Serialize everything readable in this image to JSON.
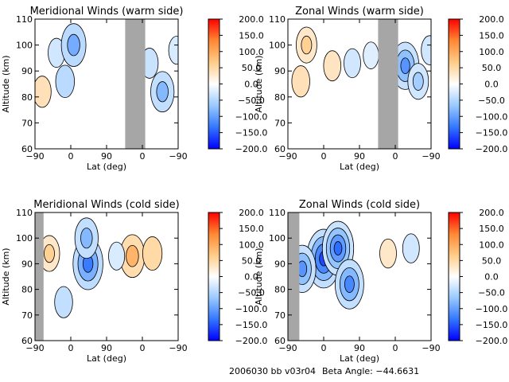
{
  "footer": {
    "run_label": "2006030 bb v03r04",
    "beta_label": "Beta Angle: −44.6631"
  },
  "colorbar": {
    "ticks": [
      "200.0",
      "150.0",
      "100.0",
      "50.0",
      "0.0",
      "−50.0",
      "−100.0",
      "−150.0",
      "−200.0"
    ],
    "range": [
      -200,
      200
    ],
    "colors": [
      "#0000ff",
      "#3377ff",
      "#99c9ff",
      "#ffffff",
      "#ffcc88",
      "#ff8833",
      "#ff0000"
    ]
  },
  "chart_data": [
    {
      "type": "heatmap",
      "title": "Meridional Winds (warm side)",
      "xlabel": "Lat (deg)",
      "ylabel": "Altitude (km)",
      "x_ticks": [
        "−90",
        "0",
        "90",
        "0",
        "−90"
      ],
      "y_ticks": [
        "60",
        "70",
        "80",
        "90",
        "100",
        "110"
      ],
      "ylim": [
        60,
        110
      ],
      "value_range": [
        -200,
        200
      ],
      "missing_band": {
        "x": [
          0.63,
          0.77
        ],
        "y": [
          60,
          110
        ]
      },
      "blobs": [
        {
          "x": 0.05,
          "y": 82,
          "value": 40
        },
        {
          "x": 0.15,
          "y": 97,
          "value": -30
        },
        {
          "x": 0.27,
          "y": 100,
          "value": -90
        },
        {
          "x": 0.21,
          "y": 86,
          "value": -45
        },
        {
          "x": 0.89,
          "y": 82,
          "value": -80
        },
        {
          "x": 0.8,
          "y": 93,
          "value": -35
        },
        {
          "x": 0.99,
          "y": 98,
          "value": -25
        }
      ]
    },
    {
      "type": "heatmap",
      "title": "Zonal Winds (warm side)",
      "xlabel": "Lat (deg)",
      "ylabel": "Altitude (km)",
      "x_ticks": [
        "−90",
        "0",
        "90",
        "0",
        "−90"
      ],
      "y_ticks": [
        "60",
        "70",
        "80",
        "90",
        "100",
        "110"
      ],
      "ylim": [
        60,
        110
      ],
      "value_range": [
        -200,
        200
      ],
      "missing_band": {
        "x": [
          0.63,
          0.77
        ],
        "y": [
          60,
          110
        ]
      },
      "blobs": [
        {
          "x": 0.13,
          "y": 100,
          "value": 60
        },
        {
          "x": 0.09,
          "y": 86,
          "value": 40
        },
        {
          "x": 0.31,
          "y": 92,
          "value": 35
        },
        {
          "x": 0.45,
          "y": 93,
          "value": -30
        },
        {
          "x": 0.58,
          "y": 96,
          "value": -20
        },
        {
          "x": 0.82,
          "y": 92,
          "value": -110
        },
        {
          "x": 0.91,
          "y": 86,
          "value": -60
        },
        {
          "x": 0.99,
          "y": 98,
          "value": -30
        }
      ]
    },
    {
      "type": "heatmap",
      "title": "Meridional Winds (cold side)",
      "xlabel": "Lat (deg)",
      "ylabel": "Altitude (km)",
      "x_ticks": [
        "−90",
        "0",
        "90",
        "0",
        "−90"
      ],
      "y_ticks": [
        "60",
        "70",
        "80",
        "90",
        "100",
        "110"
      ],
      "ylim": [
        60,
        110
      ],
      "value_range": [
        -200,
        200
      ],
      "missing_band": {
        "x": [
          0.0,
          0.06
        ],
        "y": [
          60,
          110
        ]
      },
      "blobs": [
        {
          "x": 0.1,
          "y": 94,
          "value": 60
        },
        {
          "x": 0.37,
          "y": 90,
          "value": -130
        },
        {
          "x": 0.36,
          "y": 100,
          "value": -80
        },
        {
          "x": 0.68,
          "y": 93,
          "value": 90
        },
        {
          "x": 0.57,
          "y": 93,
          "value": -25
        },
        {
          "x": 0.82,
          "y": 94,
          "value": 50
        },
        {
          "x": 0.2,
          "y": 75,
          "value": -40
        }
      ]
    },
    {
      "type": "heatmap",
      "title": "Zonal Winds (cold side)",
      "xlabel": "Lat (deg)",
      "ylabel": "Altitude (km)",
      "x_ticks": [
        "−90",
        "0",
        "90",
        "0",
        "−90"
      ],
      "y_ticks": [
        "60",
        "70",
        "80",
        "90",
        "100",
        "110"
      ],
      "ylim": [
        60,
        110
      ],
      "value_range": [
        -200,
        200
      ],
      "missing_band": {
        "x": [
          0.0,
          0.08
        ],
        "y": [
          60,
          110
        ]
      },
      "blobs": [
        {
          "x": 0.25,
          "y": 92,
          "value": -160
        },
        {
          "x": 0.35,
          "y": 96,
          "value": -140
        },
        {
          "x": 0.43,
          "y": 82,
          "value": -120
        },
        {
          "x": 0.1,
          "y": 88,
          "value": -110
        },
        {
          "x": 0.7,
          "y": 94,
          "value": 30
        },
        {
          "x": 0.86,
          "y": 96,
          "value": -30
        }
      ]
    }
  ]
}
